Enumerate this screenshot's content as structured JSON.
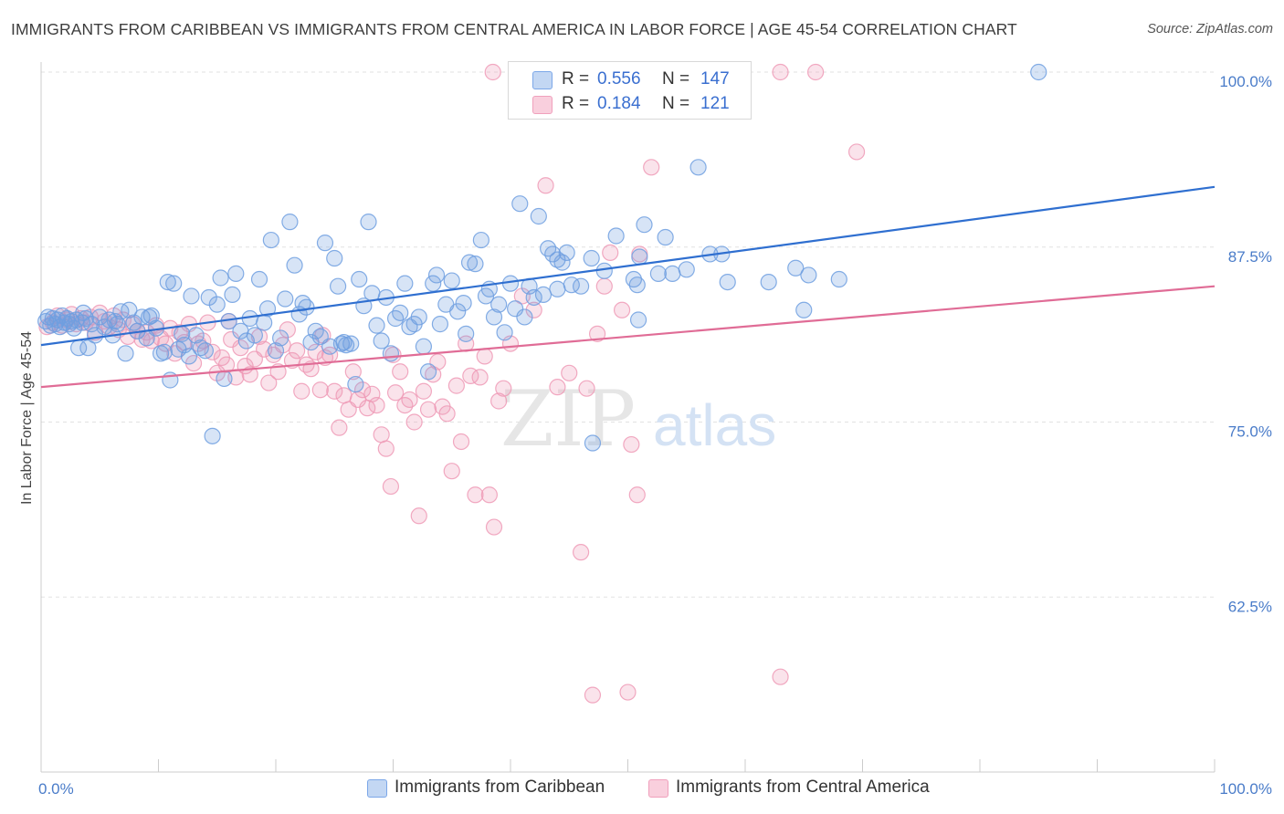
{
  "title": "IMMIGRANTS FROM CARIBBEAN VS IMMIGRANTS FROM CENTRAL AMERICA IN LABOR FORCE | AGE 45-54 CORRELATION CHART",
  "source": "Source: ZipAtlas.com",
  "watermark": {
    "zip": "ZIP",
    "atlas": "atlas"
  },
  "legend": {
    "r_label": "R =",
    "n_label": "N =",
    "rows": [
      {
        "r": "0.556",
        "n": "147",
        "color": "#7ba7e8"
      },
      {
        "r": "0.184",
        "n": "121",
        "color": "#f0a0bc"
      }
    ]
  },
  "bottom_legend": [
    {
      "label": "Immigrants from Caribbean",
      "color": "#7ba7e8"
    },
    {
      "label": "Immigrants from Central America",
      "color": "#f0a0bc"
    }
  ],
  "colors": {
    "blue_point": "#6f9fe0",
    "blue_line": "#2f6fd0",
    "pink_point": "#ee9ab6",
    "pink_line": "#e06c96",
    "tick_label": "#4a7cc9"
  },
  "chart_data": {
    "type": "scatter",
    "title": "IMMIGRANTS FROM CARIBBEAN VS IMMIGRANTS FROM CENTRAL AMERICA IN LABOR FORCE | AGE 45-54 CORRELATION CHART",
    "xlabel": "",
    "ylabel": "In Labor Force | Age 45-54",
    "xlim": [
      0,
      100
    ],
    "ylim": [
      50,
      100
    ],
    "x_tick_labels": [
      "0.0%",
      "100.0%"
    ],
    "y_ticks": [
      62.5,
      75.0,
      87.5,
      100.0
    ],
    "y_tick_labels": [
      "62.5%",
      "75.0%",
      "87.5%",
      "100.0%"
    ],
    "grid": true,
    "series": [
      {
        "name": "Immigrants from Caribbean",
        "r": 0.556,
        "n": 147,
        "trend": [
          [
            0,
            80.5
          ],
          [
            100,
            91.8
          ]
        ],
        "points": [
          [
            0.4,
            82.2
          ],
          [
            0.6,
            82.5
          ],
          [
            0.8,
            81.9
          ],
          [
            1.0,
            82.4
          ],
          [
            1.2,
            82.0
          ],
          [
            1.4,
            82.3
          ],
          [
            1.6,
            81.8
          ],
          [
            1.8,
            82.6
          ],
          [
            2.0,
            82.1
          ],
          [
            2.2,
            82.4
          ],
          [
            2.4,
            82.0
          ],
          [
            2.6,
            82.2
          ],
          [
            2.8,
            81.7
          ],
          [
            3.0,
            82.3
          ],
          [
            3.2,
            80.3
          ],
          [
            3.5,
            82.1
          ],
          [
            3.8,
            82.4
          ],
          [
            4.0,
            80.3
          ],
          [
            4.3,
            82.0
          ],
          [
            4.6,
            81.2
          ],
          [
            5.0,
            82.5
          ],
          [
            5.4,
            81.8
          ],
          [
            5.8,
            82.3
          ],
          [
            6.1,
            81.2
          ],
          [
            6.5,
            82.0
          ],
          [
            6.8,
            82.9
          ],
          [
            7.2,
            79.9
          ],
          [
            7.5,
            83.0
          ],
          [
            7.9,
            82.1
          ],
          [
            8.2,
            81.5
          ],
          [
            8.6,
            82.5
          ],
          [
            9.0,
            81.0
          ],
          [
            9.4,
            82.6
          ],
          [
            9.8,
            81.7
          ],
          [
            10.2,
            79.9
          ],
          [
            10.5,
            80.0
          ],
          [
            10.8,
            85.0
          ],
          [
            11.0,
            78.0
          ],
          [
            11.3,
            84.9
          ],
          [
            11.7,
            80.2
          ],
          [
            12.2,
            80.5
          ],
          [
            12.6,
            79.7
          ],
          [
            12.8,
            84.0
          ],
          [
            13.2,
            81.2
          ],
          [
            13.6,
            80.3
          ],
          [
            14.0,
            80.1
          ],
          [
            14.3,
            83.9
          ],
          [
            14.6,
            74.0
          ],
          [
            15.0,
            83.4
          ],
          [
            15.3,
            85.3
          ],
          [
            15.6,
            78.1
          ],
          [
            16.0,
            82.2
          ],
          [
            16.3,
            84.1
          ],
          [
            16.6,
            85.6
          ],
          [
            17.0,
            81.5
          ],
          [
            17.5,
            80.8
          ],
          [
            17.8,
            82.4
          ],
          [
            18.2,
            81.2
          ],
          [
            18.6,
            85.2
          ],
          [
            19.0,
            82.1
          ],
          [
            19.3,
            83.1
          ],
          [
            19.6,
            88.0
          ],
          [
            20.0,
            80.1
          ],
          [
            20.4,
            81.0
          ],
          [
            20.8,
            83.8
          ],
          [
            21.2,
            89.3
          ],
          [
            21.6,
            86.2
          ],
          [
            22.0,
            82.7
          ],
          [
            22.3,
            83.5
          ],
          [
            22.6,
            83.2
          ],
          [
            23.0,
            80.7
          ],
          [
            23.4,
            81.5
          ],
          [
            23.8,
            81.1
          ],
          [
            24.2,
            87.8
          ],
          [
            24.6,
            80.4
          ],
          [
            25.0,
            86.7
          ],
          [
            25.3,
            84.7
          ],
          [
            25.6,
            80.6
          ],
          [
            26.0,
            80.5
          ],
          [
            26.4,
            80.6
          ],
          [
            26.8,
            77.7
          ],
          [
            27.1,
            85.2
          ],
          [
            27.5,
            83.3
          ],
          [
            27.9,
            89.3
          ],
          [
            28.2,
            84.2
          ],
          [
            28.6,
            81.9
          ],
          [
            29.0,
            80.8
          ],
          [
            29.4,
            83.9
          ],
          [
            29.8,
            79.9
          ],
          [
            30.2,
            82.4
          ],
          [
            30.6,
            82.8
          ],
          [
            31.0,
            84.9
          ],
          [
            31.4,
            81.8
          ],
          [
            31.8,
            82.0
          ],
          [
            32.2,
            82.5
          ],
          [
            32.6,
            80.4
          ],
          [
            33.0,
            78.6
          ],
          [
            33.4,
            84.9
          ],
          [
            33.7,
            85.5
          ],
          [
            34.0,
            82.0
          ],
          [
            34.5,
            83.4
          ],
          [
            35.0,
            85.1
          ],
          [
            35.5,
            82.9
          ],
          [
            36.0,
            83.5
          ],
          [
            36.5,
            86.4
          ],
          [
            37.0,
            86.3
          ],
          [
            37.5,
            88.0
          ],
          [
            37.9,
            84.0
          ],
          [
            38.2,
            84.5
          ],
          [
            38.6,
            82.5
          ],
          [
            39.0,
            83.4
          ],
          [
            39.5,
            81.4
          ],
          [
            40.0,
            84.9
          ],
          [
            40.4,
            83.1
          ],
          [
            40.8,
            90.6
          ],
          [
            41.2,
            82.5
          ],
          [
            41.6,
            84.7
          ],
          [
            42.0,
            83.9
          ],
          [
            42.4,
            89.7
          ],
          [
            42.8,
            84.1
          ],
          [
            43.2,
            87.4
          ],
          [
            43.6,
            87.0
          ],
          [
            44.0,
            84.5
          ],
          [
            44.4,
            86.4
          ],
          [
            44.8,
            87.1
          ],
          [
            45.2,
            84.8
          ],
          [
            46.0,
            84.7
          ],
          [
            46.9,
            86.7
          ],
          [
            47.0,
            73.5
          ],
          [
            48.0,
            85.8
          ],
          [
            49.0,
            88.3
          ],
          [
            50.5,
            85.2
          ],
          [
            50.8,
            84.8
          ],
          [
            50.9,
            82.3
          ],
          [
            51.0,
            86.8
          ],
          [
            51.4,
            89.1
          ],
          [
            52.6,
            85.6
          ],
          [
            53.2,
            88.2
          ],
          [
            53.8,
            85.6
          ],
          [
            55.0,
            85.9
          ],
          [
            56.0,
            93.2
          ],
          [
            57.0,
            87.0
          ],
          [
            58.0,
            87.0
          ],
          [
            58.5,
            85.0
          ],
          [
            62.0,
            85.0
          ],
          [
            65.0,
            83.0
          ],
          [
            65.4,
            85.5
          ],
          [
            68.0,
            85.2
          ],
          [
            85.0,
            100.0
          ],
          [
            64.3,
            86.0
          ],
          [
            3.6,
            82.8
          ],
          [
            6.3,
            82.2
          ],
          [
            9.2,
            82.5
          ],
          [
            12.0,
            81.3
          ],
          [
            25.8,
            80.7
          ],
          [
            36.2,
            81.3
          ],
          [
            44.0,
            86.6
          ]
        ]
      },
      {
        "name": "Immigrants from Central America",
        "r": 0.184,
        "n": 121,
        "trend": [
          [
            0,
            77.5
          ],
          [
            100,
            84.7
          ]
        ],
        "points": [
          [
            0.5,
            81.8
          ],
          [
            1.0,
            82.1
          ],
          [
            1.4,
            82.6
          ],
          [
            1.8,
            81.9
          ],
          [
            2.2,
            82.3
          ],
          [
            2.6,
            82.7
          ],
          [
            3.0,
            82.0
          ],
          [
            3.4,
            82.4
          ],
          [
            3.8,
            82.1
          ],
          [
            4.2,
            82.5
          ],
          [
            4.6,
            81.4
          ],
          [
            5.0,
            82.8
          ],
          [
            5.4,
            82.2
          ],
          [
            5.8,
            81.8
          ],
          [
            6.2,
            82.6
          ],
          [
            6.6,
            81.6
          ],
          [
            7.0,
            82.3
          ],
          [
            7.4,
            81.1
          ],
          [
            7.8,
            82.0
          ],
          [
            8.2,
            81.5
          ],
          [
            8.6,
            80.9
          ],
          [
            9.0,
            81.4
          ],
          [
            9.4,
            80.8
          ],
          [
            9.8,
            81.9
          ],
          [
            10.2,
            81.0
          ],
          [
            10.6,
            80.6
          ],
          [
            11.0,
            81.7
          ],
          [
            11.4,
            79.9
          ],
          [
            11.8,
            81.4
          ],
          [
            12.2,
            80.7
          ],
          [
            12.6,
            82.0
          ],
          [
            13.0,
            79.2
          ],
          [
            13.4,
            80.6
          ],
          [
            13.8,
            80.8
          ],
          [
            14.2,
            82.1
          ],
          [
            14.6,
            80.0
          ],
          [
            15.0,
            78.5
          ],
          [
            15.4,
            79.6
          ],
          [
            15.8,
            79.1
          ],
          [
            16.2,
            80.9
          ],
          [
            16.6,
            78.2
          ],
          [
            17.0,
            80.3
          ],
          [
            17.4,
            79.0
          ],
          [
            17.8,
            78.4
          ],
          [
            18.2,
            79.5
          ],
          [
            18.6,
            81.1
          ],
          [
            19.0,
            80.2
          ],
          [
            19.4,
            77.8
          ],
          [
            19.8,
            79.8
          ],
          [
            20.2,
            78.6
          ],
          [
            20.6,
            80.5
          ],
          [
            21.0,
            81.6
          ],
          [
            21.4,
            79.4
          ],
          [
            21.8,
            80.1
          ],
          [
            22.2,
            77.2
          ],
          [
            22.6,
            79.1
          ],
          [
            23.0,
            78.8
          ],
          [
            23.4,
            80.0
          ],
          [
            23.8,
            77.3
          ],
          [
            24.2,
            79.6
          ],
          [
            24.6,
            79.8
          ],
          [
            25.0,
            77.2
          ],
          [
            25.4,
            74.6
          ],
          [
            25.8,
            76.9
          ],
          [
            26.2,
            75.9
          ],
          [
            26.6,
            78.6
          ],
          [
            27.0,
            76.6
          ],
          [
            27.4,
            77.3
          ],
          [
            27.8,
            76.0
          ],
          [
            28.2,
            77.0
          ],
          [
            28.6,
            76.2
          ],
          [
            29.0,
            74.1
          ],
          [
            29.4,
            73.1
          ],
          [
            29.8,
            70.4
          ],
          [
            30.2,
            77.1
          ],
          [
            30.6,
            78.6
          ],
          [
            31.0,
            76.2
          ],
          [
            31.4,
            76.6
          ],
          [
            31.8,
            75.0
          ],
          [
            32.2,
            68.3
          ],
          [
            32.6,
            77.2
          ],
          [
            33.0,
            75.9
          ],
          [
            33.4,
            78.4
          ],
          [
            33.8,
            79.3
          ],
          [
            34.2,
            76.1
          ],
          [
            34.6,
            75.6
          ],
          [
            35.0,
            71.5
          ],
          [
            35.4,
            77.6
          ],
          [
            35.8,
            73.6
          ],
          [
            36.2,
            80.6
          ],
          [
            36.6,
            78.3
          ],
          [
            37.0,
            69.8
          ],
          [
            37.4,
            78.2
          ],
          [
            37.8,
            79.7
          ],
          [
            38.2,
            69.8
          ],
          [
            38.6,
            67.5
          ],
          [
            39.0,
            76.5
          ],
          [
            39.4,
            77.4
          ],
          [
            40.0,
            80.6
          ],
          [
            41.0,
            84.0
          ],
          [
            42.0,
            83.0
          ],
          [
            43.0,
            91.9
          ],
          [
            44.0,
            77.5
          ],
          [
            45.0,
            78.5
          ],
          [
            46.0,
            65.7
          ],
          [
            46.5,
            77.4
          ],
          [
            47.4,
            81.3
          ],
          [
            48.0,
            84.7
          ],
          [
            48.5,
            87.1
          ],
          [
            49.5,
            83.0
          ],
          [
            50.3,
            73.4
          ],
          [
            50.8,
            69.8
          ],
          [
            51.0,
            87.0
          ],
          [
            52.0,
            93.2
          ],
          [
            53.0,
            100.0
          ],
          [
            55.0,
            100.0
          ],
          [
            59.0,
            100.0
          ],
          [
            59.5,
            100.0
          ],
          [
            63.0,
            100.0
          ],
          [
            69.5,
            94.3
          ],
          [
            47.0,
            55.5
          ],
          [
            50.0,
            55.7
          ],
          [
            63.0,
            56.8
          ],
          [
            66.0,
            100.0
          ],
          [
            38.5,
            100.0
          ],
          [
            24.0,
            81.2
          ],
          [
            16.0,
            82.2
          ],
          [
            30.0,
            79.8
          ]
        ]
      }
    ]
  }
}
